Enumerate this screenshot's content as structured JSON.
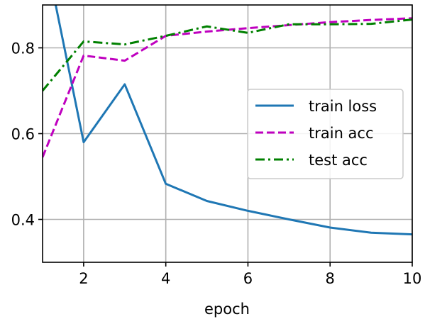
{
  "chart_data": {
    "type": "line",
    "xlabel": "epoch",
    "ylabel": "",
    "xlim": [
      1,
      10
    ],
    "ylim": [
      0.3,
      0.9
    ],
    "xticks": [
      2,
      4,
      6,
      8,
      10
    ],
    "yticks": [
      0.4,
      0.6,
      0.8
    ],
    "grid": true,
    "legend_position": "center-right",
    "series": [
      {
        "name": "train loss",
        "color": "#1f77b4",
        "style": "solid",
        "x": [
          1,
          2,
          3,
          4,
          5,
          6,
          7,
          8,
          9,
          10
        ],
        "y": [
          1.05,
          0.58,
          0.715,
          0.483,
          0.443,
          0.42,
          0.4,
          0.381,
          0.369,
          0.365
        ]
      },
      {
        "name": "train acc",
        "color": "#bf00bf",
        "style": "dashed",
        "x": [
          1,
          2,
          3,
          4,
          5,
          6,
          7,
          8,
          9,
          10
        ],
        "y": [
          0.545,
          0.782,
          0.77,
          0.828,
          0.838,
          0.846,
          0.853,
          0.86,
          0.865,
          0.869
        ]
      },
      {
        "name": "test acc",
        "color": "#008000",
        "style": "dashdot",
        "x": [
          1,
          2,
          3,
          4,
          5,
          6,
          7,
          8,
          9,
          10
        ],
        "y": [
          0.7,
          0.815,
          0.808,
          0.828,
          0.85,
          0.835,
          0.855,
          0.855,
          0.856,
          0.866
        ]
      }
    ]
  }
}
